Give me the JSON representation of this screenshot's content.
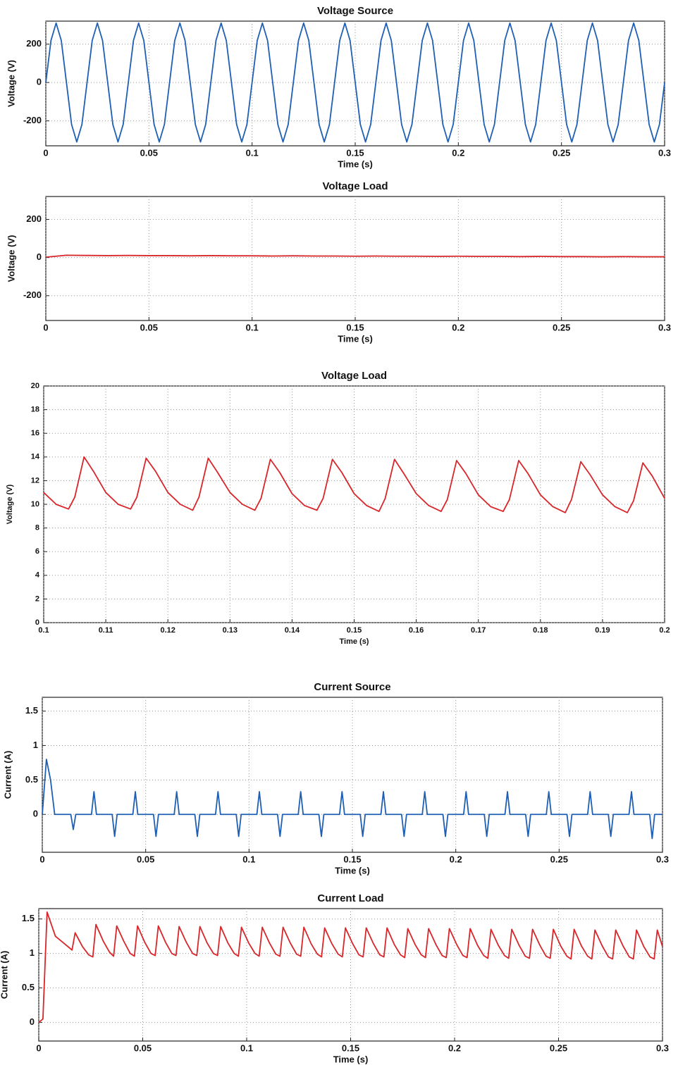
{
  "chart_data": [
    {
      "type": "line",
      "title": "Voltage Source",
      "xlabel": "Time (s)",
      "ylabel": "Voltage (V)",
      "color": "#1f5fb4",
      "grid": true,
      "xlim": [
        0,
        0.3
      ],
      "xticks": [
        0,
        0.05,
        0.1,
        0.15,
        0.2,
        0.25,
        0.3
      ],
      "ylim": [
        -330,
        320
      ],
      "yticks": [
        -200,
        0,
        200
      ],
      "x": [
        0,
        0.0025,
        0.005,
        0.0075,
        0.01,
        0.0125,
        0.015,
        0.0175,
        0.02,
        0.0225,
        0.025,
        0.0275,
        0.03,
        0.0325,
        0.035,
        0.0375,
        0.04,
        0.0425,
        0.045,
        0.0475,
        0.05,
        0.0525,
        0.055,
        0.0575,
        0.06,
        0.0625,
        0.065,
        0.0675,
        0.07,
        0.0725,
        0.075,
        0.0775,
        0.08,
        0.0825,
        0.085,
        0.0875,
        0.09,
        0.0925,
        0.095,
        0.0975,
        0.1,
        0.1025,
        0.105,
        0.1075,
        0.11,
        0.1125,
        0.115,
        0.1175,
        0.12,
        0.1225,
        0.125,
        0.1275,
        0.13,
        0.1325,
        0.135,
        0.1375,
        0.14,
        0.1425,
        0.145,
        0.1475,
        0.15,
        0.1525,
        0.155,
        0.1575,
        0.16,
        0.1625,
        0.165,
        0.1675,
        0.17,
        0.1725,
        0.175,
        0.1775,
        0.18,
        0.1825,
        0.185,
        0.1875,
        0.19,
        0.1925,
        0.195,
        0.1975,
        0.2,
        0.2025,
        0.205,
        0.2075,
        0.21,
        0.2125,
        0.215,
        0.2175,
        0.22,
        0.2225,
        0.225,
        0.2275,
        0.23,
        0.2325,
        0.235,
        0.2375,
        0.24,
        0.2425,
        0.245,
        0.2475,
        0.25,
        0.2525,
        0.255,
        0.2575,
        0.26,
        0.2625,
        0.265,
        0.2675,
        0.27,
        0.2725,
        0.275,
        0.2775,
        0.28,
        0.2825,
        0.285,
        0.2875,
        0.29,
        0.2925,
        0.295,
        0.2975,
        0.3
      ],
      "values": [
        0,
        219,
        310,
        219,
        0,
        -219,
        -310,
        -219,
        0,
        219,
        310,
        219,
        0,
        -219,
        -310,
        -219,
        0,
        219,
        310,
        219,
        0,
        -219,
        -310,
        -219,
        0,
        219,
        310,
        219,
        0,
        -219,
        -310,
        -219,
        0,
        219,
        310,
        219,
        0,
        -219,
        -310,
        -219,
        0,
        219,
        310,
        219,
        0,
        -219,
        -310,
        -219,
        0,
        219,
        310,
        219,
        0,
        -219,
        -310,
        -219,
        0,
        219,
        310,
        219,
        0,
        -219,
        -310,
        -219,
        0,
        219,
        310,
        219,
        0,
        -219,
        -310,
        -219,
        0,
        219,
        310,
        219,
        0,
        -219,
        -310,
        -219,
        0,
        219,
        310,
        219,
        0,
        -219,
        -310,
        -219,
        0,
        219,
        310,
        219,
        0,
        -219,
        -310,
        -219,
        0,
        219,
        310,
        219,
        0,
        -219,
        -310,
        -219,
        0,
        219,
        310,
        219,
        0,
        -219,
        -310,
        -219,
        0,
        219,
        310,
        219,
        0,
        -219,
        -310,
        -219,
        0
      ]
    },
    {
      "type": "line",
      "title": "Voltage  Load",
      "xlabel": "Time (s)",
      "ylabel": "Voltage (V)",
      "color": "#d8262a",
      "grid": true,
      "xlim": [
        0,
        0.3
      ],
      "xticks": [
        0,
        0.05,
        0.1,
        0.15,
        0.2,
        0.25,
        0.3
      ],
      "ylim": [
        -330,
        320
      ],
      "yticks": [
        -200,
        0,
        200
      ],
      "x": [
        0,
        0.01,
        0.02,
        0.03,
        0.04,
        0.05,
        0.06,
        0.07,
        0.08,
        0.09,
        0.1,
        0.11,
        0.12,
        0.13,
        0.14,
        0.15,
        0.16,
        0.17,
        0.18,
        0.19,
        0.2,
        0.21,
        0.22,
        0.23,
        0.24,
        0.25,
        0.26,
        0.27,
        0.28,
        0.29,
        0.3
      ],
      "values": [
        2,
        12,
        11,
        10,
        11,
        10,
        10,
        9,
        10,
        9,
        9,
        8,
        9,
        8,
        8,
        7,
        8,
        7,
        7,
        6,
        7,
        6,
        6,
        5,
        6,
        5,
        5,
        4,
        5,
        4,
        4
      ]
    },
    {
      "type": "line",
      "title": "Voltage Load",
      "xlabel": "Time (s)",
      "ylabel": "Voltage (V)",
      "color": "#d8262a",
      "grid": true,
      "xlim": [
        0.1,
        0.2
      ],
      "xticks": [
        0.1,
        0.11,
        0.12,
        0.13,
        0.14,
        0.15,
        0.16,
        0.17,
        0.18,
        0.19,
        0.2
      ],
      "ylim": [
        0,
        20
      ],
      "yticks": [
        0,
        2,
        4,
        6,
        8,
        10,
        12,
        14,
        16,
        18,
        20
      ],
      "x": [
        0.1,
        0.102,
        0.104,
        0.105,
        0.1065,
        0.108,
        0.11,
        0.112,
        0.114,
        0.115,
        0.1165,
        0.118,
        0.12,
        0.122,
        0.124,
        0.125,
        0.1265,
        0.128,
        0.13,
        0.132,
        0.134,
        0.135,
        0.1365,
        0.138,
        0.14,
        0.142,
        0.144,
        0.145,
        0.1465,
        0.148,
        0.15,
        0.152,
        0.154,
        0.155,
        0.1565,
        0.158,
        0.16,
        0.162,
        0.164,
        0.165,
        0.1665,
        0.168,
        0.17,
        0.172,
        0.174,
        0.175,
        0.1765,
        0.178,
        0.18,
        0.182,
        0.184,
        0.185,
        0.1865,
        0.188,
        0.19,
        0.192,
        0.194,
        0.195,
        0.1965,
        0.198,
        0.2
      ],
      "values": [
        11.0,
        10.0,
        9.6,
        10.6,
        14.0,
        12.8,
        11.0,
        10.0,
        9.6,
        10.6,
        13.9,
        12.8,
        11.0,
        10.0,
        9.5,
        10.6,
        13.9,
        12.7,
        11.0,
        10.0,
        9.5,
        10.5,
        13.8,
        12.7,
        10.9,
        9.9,
        9.5,
        10.5,
        13.8,
        12.7,
        10.9,
        9.9,
        9.4,
        10.5,
        13.8,
        12.6,
        10.9,
        9.9,
        9.4,
        10.4,
        13.7,
        12.6,
        10.8,
        9.8,
        9.4,
        10.4,
        13.7,
        12.6,
        10.8,
        9.8,
        9.3,
        10.4,
        13.6,
        12.5,
        10.8,
        9.8,
        9.3,
        10.3,
        13.5,
        12.4,
        10.5
      ]
    },
    {
      "type": "line",
      "title": "Current  Source",
      "xlabel": "Time (s)",
      "ylabel": "Current (A)",
      "color": "#1f5fb4",
      "grid": true,
      "xlim": [
        0,
        0.3
      ],
      "xticks": [
        0,
        0.05,
        0.1,
        0.15,
        0.2,
        0.25,
        0.3
      ],
      "ylim": [
        -0.55,
        1.7
      ],
      "yticks": [
        0,
        0.5,
        1,
        1.5
      ],
      "x": [
        0,
        0.002,
        0.004,
        0.006,
        0.0138,
        0.015,
        0.0162,
        0.0238,
        0.025,
        0.0262,
        0.0338,
        0.035,
        0.0362,
        0.0438,
        0.045,
        0.0462,
        0.0538,
        0.055,
        0.0562,
        0.0638,
        0.065,
        0.0662,
        0.0738,
        0.075,
        0.0762,
        0.0838,
        0.085,
        0.0862,
        0.0938,
        0.095,
        0.0962,
        0.1038,
        0.105,
        0.1062,
        0.1138,
        0.115,
        0.1162,
        0.1238,
        0.125,
        0.1262,
        0.1338,
        0.135,
        0.1362,
        0.1438,
        0.145,
        0.1462,
        0.1538,
        0.155,
        0.1562,
        0.1638,
        0.165,
        0.1662,
        0.1738,
        0.175,
        0.1762,
        0.1838,
        0.185,
        0.1862,
        0.1938,
        0.195,
        0.1962,
        0.2038,
        0.205,
        0.2062,
        0.2138,
        0.215,
        0.2162,
        0.2238,
        0.225,
        0.2262,
        0.2338,
        0.235,
        0.2362,
        0.2438,
        0.245,
        0.2462,
        0.2538,
        0.255,
        0.2562,
        0.2638,
        0.265,
        0.2662,
        0.2738,
        0.275,
        0.2762,
        0.2838,
        0.285,
        0.2862,
        0.2938,
        0.295,
        0.2962,
        0.3
      ],
      "values": [
        0,
        0.8,
        0.5,
        0,
        0,
        -0.22,
        0,
        0,
        0.33,
        0,
        0,
        -0.32,
        0,
        0,
        0.33,
        0,
        0,
        -0.32,
        0,
        0,
        0.33,
        0,
        0,
        -0.32,
        0,
        0,
        0.33,
        0,
        0,
        -0.32,
        0,
        0,
        0.33,
        0,
        0,
        -0.32,
        0,
        0,
        0.33,
        0,
        0,
        -0.32,
        0,
        0,
        0.33,
        0,
        0,
        -0.32,
        0,
        0,
        0.33,
        0,
        0,
        -0.32,
        0,
        0,
        0.33,
        0,
        0,
        -0.32,
        0,
        0,
        0.33,
        0,
        0,
        -0.32,
        0,
        0,
        0.33,
        0,
        0,
        -0.32,
        0,
        0,
        0.33,
        0,
        0,
        -0.32,
        0,
        0,
        0.33,
        0,
        0,
        -0.32,
        0,
        0,
        0.33,
        0,
        0,
        -0.35,
        0,
        0
      ]
    },
    {
      "type": "line",
      "title": "Current Load",
      "xlabel": "Time (s)",
      "ylabel": "Current (A)",
      "color": "#d8262a",
      "grid": true,
      "xlim": [
        0,
        0.3
      ],
      "xticks": [
        0,
        0.05,
        0.1,
        0.15,
        0.2,
        0.25,
        0.3
      ],
      "ylim": [
        -0.27,
        1.65
      ],
      "yticks": [
        0,
        0.5,
        1,
        1.5
      ],
      "x": [
        0,
        0.002,
        0.004,
        0.008,
        0.012,
        0.016,
        0.0175,
        0.021,
        0.024,
        0.026,
        0.0275,
        0.031,
        0.034,
        0.036,
        0.0375,
        0.041,
        0.044,
        0.046,
        0.0475,
        0.051,
        0.054,
        0.056,
        0.0575,
        0.061,
        0.064,
        0.066,
        0.0675,
        0.071,
        0.074,
        0.076,
        0.0775,
        0.081,
        0.084,
        0.086,
        0.0875,
        0.091,
        0.094,
        0.096,
        0.0975,
        0.101,
        0.104,
        0.106,
        0.1075,
        0.111,
        0.114,
        0.116,
        0.1175,
        0.121,
        0.124,
        0.126,
        0.1275,
        0.131,
        0.134,
        0.136,
        0.1375,
        0.141,
        0.144,
        0.146,
        0.1475,
        0.151,
        0.154,
        0.156,
        0.1575,
        0.161,
        0.164,
        0.166,
        0.1675,
        0.171,
        0.174,
        0.176,
        0.1775,
        0.181,
        0.184,
        0.186,
        0.1875,
        0.191,
        0.194,
        0.196,
        0.1975,
        0.201,
        0.204,
        0.206,
        0.2075,
        0.211,
        0.214,
        0.216,
        0.2175,
        0.221,
        0.224,
        0.226,
        0.2275,
        0.231,
        0.234,
        0.236,
        0.2375,
        0.241,
        0.244,
        0.246,
        0.2475,
        0.251,
        0.254,
        0.256,
        0.2575,
        0.261,
        0.264,
        0.266,
        0.2675,
        0.271,
        0.274,
        0.276,
        0.2775,
        0.281,
        0.284,
        0.286,
        0.2875,
        0.291,
        0.294,
        0.296,
        0.2975,
        0.3
      ],
      "values": [
        0,
        0.05,
        1.6,
        1.25,
        1.15,
        1.05,
        1.3,
        1.1,
        0.98,
        0.95,
        1.42,
        1.18,
        1.02,
        0.96,
        1.4,
        1.17,
        1.0,
        0.96,
        1.4,
        1.16,
        1.0,
        0.97,
        1.4,
        1.16,
        1.0,
        0.97,
        1.39,
        1.16,
        1.0,
        0.97,
        1.39,
        1.15,
        1.0,
        0.97,
        1.39,
        1.15,
        1.0,
        0.96,
        1.38,
        1.15,
        1.0,
        0.96,
        1.38,
        1.15,
        0.99,
        0.96,
        1.38,
        1.15,
        0.99,
        0.96,
        1.38,
        1.14,
        0.99,
        0.95,
        1.37,
        1.14,
        0.99,
        0.95,
        1.37,
        1.14,
        0.98,
        0.95,
        1.37,
        1.14,
        0.98,
        0.95,
        1.37,
        1.13,
        0.98,
        0.94,
        1.36,
        1.13,
        0.98,
        0.94,
        1.36,
        1.13,
        0.97,
        0.94,
        1.36,
        1.13,
        0.97,
        0.94,
        1.36,
        1.12,
        0.97,
        0.93,
        1.35,
        1.12,
        0.97,
        0.93,
        1.35,
        1.12,
        0.96,
        0.93,
        1.35,
        1.12,
        0.96,
        0.93,
        1.35,
        1.11,
        0.96,
        0.92,
        1.35,
        1.11,
        0.96,
        0.92,
        1.34,
        1.11,
        0.95,
        0.92,
        1.34,
        1.11,
        0.95,
        0.92,
        1.34,
        1.1,
        0.95,
        0.92,
        1.34,
        1.1
      ]
    }
  ]
}
